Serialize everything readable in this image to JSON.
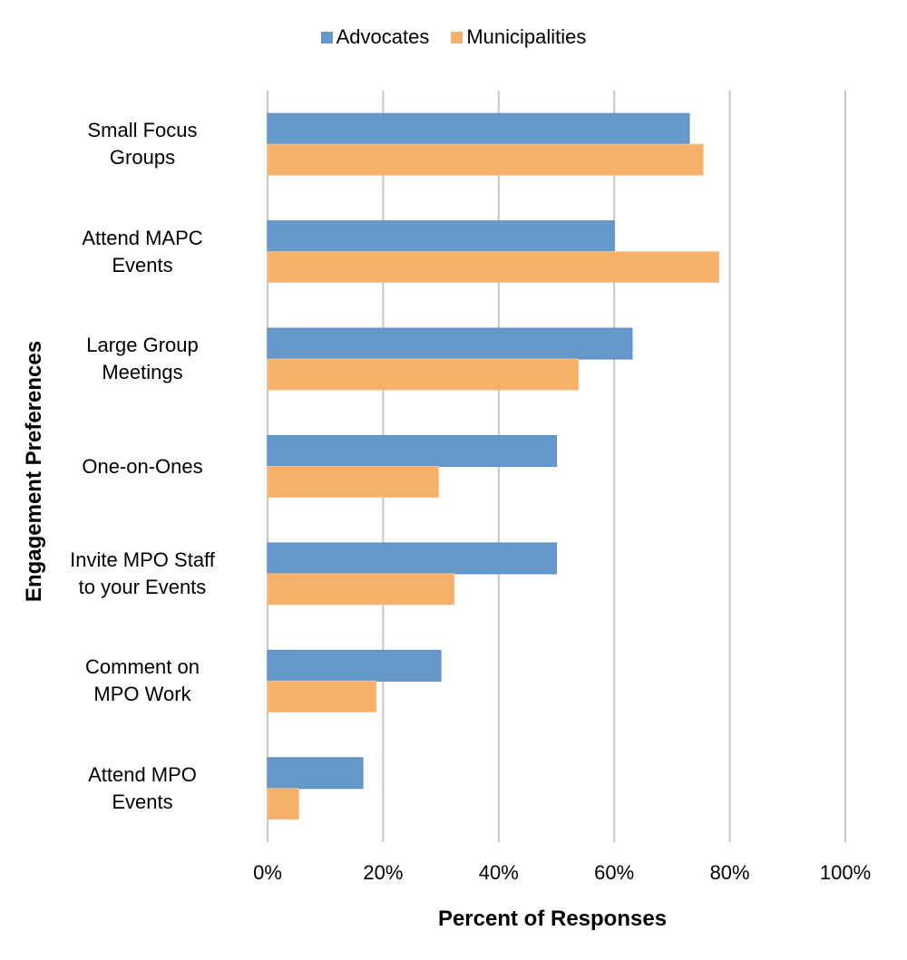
{
  "chart_data": {
    "type": "bar",
    "orientation": "horizontal",
    "title": "",
    "xlabel": "Percent of Responses",
    "ylabel": "Engagement Preferences",
    "xlim": [
      0,
      100
    ],
    "x_ticks": [
      "0%",
      "20%",
      "40%",
      "60%",
      "80%",
      "100%"
    ],
    "x_tick_values": [
      0,
      20,
      40,
      60,
      80,
      100
    ],
    "grid": "vertical",
    "legend_position": "top",
    "categories": [
      [
        "Small Focus",
        "Groups"
      ],
      [
        "Attend MAPC",
        "Events"
      ],
      [
        "Large Group",
        "Meetings"
      ],
      [
        "One-on-Ones"
      ],
      [
        "Invite MPO Staff",
        "to your Events"
      ],
      [
        "Comment on",
        "MPO Work"
      ],
      [
        "Attend MPO",
        "Events"
      ]
    ],
    "series": [
      {
        "name": "Advocates",
        "color": "#6699C9",
        "values": [
          73.0,
          60.0,
          63.1,
          50.0,
          50.0,
          30.0,
          16.5
        ]
      },
      {
        "name": "Municipalities",
        "color": "#F5B06A",
        "values": [
          75.4,
          78.1,
          53.8,
          29.6,
          32.3,
          18.8,
          5.4
        ]
      }
    ]
  }
}
